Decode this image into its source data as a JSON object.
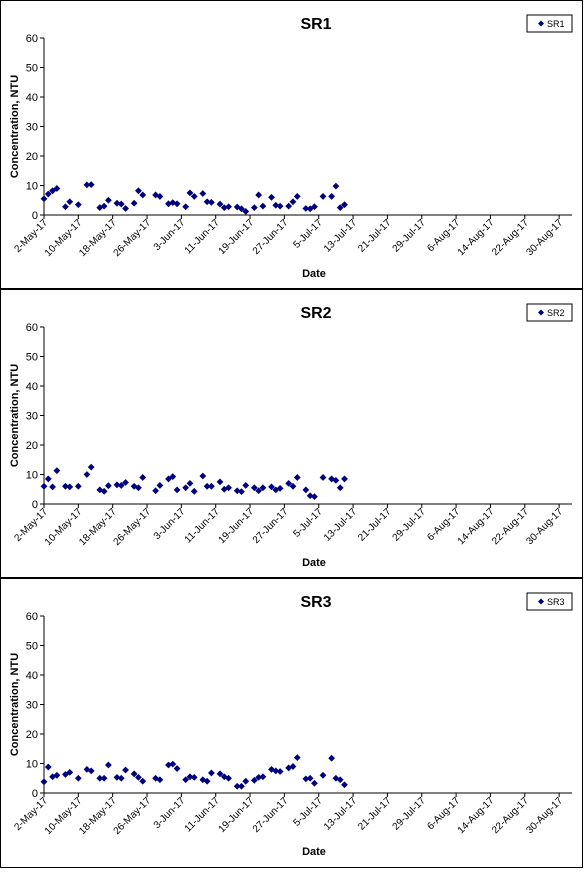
{
  "chart_data": [
    {
      "type": "scatter",
      "title": "SR1",
      "xlabel": "Date",
      "ylabel": "Concentration, NTU",
      "ylim": [
        0,
        60
      ],
      "yticks": [
        0,
        10,
        20,
        30,
        40,
        50,
        60
      ],
      "xlim": [
        "2017-05-02",
        "2017-09-02"
      ],
      "xticks": [
        {
          "date": "2017-05-02",
          "label": "2-May-17"
        },
        {
          "date": "2017-05-10",
          "label": "10-May-17"
        },
        {
          "date": "2017-05-18",
          "label": "18-May-17"
        },
        {
          "date": "2017-05-26",
          "label": "26-May-17"
        },
        {
          "date": "2017-06-03",
          "label": "3-Jun-17"
        },
        {
          "date": "2017-06-11",
          "label": "11-Jun-17"
        },
        {
          "date": "2017-06-19",
          "label": "19-Jun-17"
        },
        {
          "date": "2017-06-27",
          "label": "27-Jun-17"
        },
        {
          "date": "2017-07-05",
          "label": "5-Jul-17"
        },
        {
          "date": "2017-07-13",
          "label": "13-Jul-17"
        },
        {
          "date": "2017-07-21",
          "label": "21-Jul-17"
        },
        {
          "date": "2017-07-29",
          "label": "29-Jul-17"
        },
        {
          "date": "2017-08-06",
          "label": "6-Aug-17"
        },
        {
          "date": "2017-08-14",
          "label": "14-Aug-17"
        },
        {
          "date": "2017-08-22",
          "label": "22-Aug-17"
        },
        {
          "date": "2017-08-30",
          "label": "30-Aug-17"
        }
      ],
      "grid": false,
      "legend": {
        "position": "top-right",
        "entries": [
          "SR1"
        ]
      },
      "series": [
        {
          "name": "SR1",
          "color": "#00007f",
          "marker": "diamond",
          "points": [
            [
              "2017-05-02",
              5.5
            ],
            [
              "2017-05-03",
              7.1
            ],
            [
              "2017-05-04",
              8.2
            ],
            [
              "2017-05-05",
              9.0
            ],
            [
              "2017-05-07",
              2.8
            ],
            [
              "2017-05-08",
              4.5
            ],
            [
              "2017-05-10",
              3.5
            ],
            [
              "2017-05-12",
              10.2
            ],
            [
              "2017-05-13",
              10.3
            ],
            [
              "2017-05-15",
              2.5
            ],
            [
              "2017-05-16",
              3.0
            ],
            [
              "2017-05-17",
              5.0
            ],
            [
              "2017-05-19",
              4.0
            ],
            [
              "2017-05-20",
              3.7
            ],
            [
              "2017-05-21",
              2.2
            ],
            [
              "2017-05-23",
              4.0
            ],
            [
              "2017-05-24",
              8.2
            ],
            [
              "2017-05-25",
              6.8
            ],
            [
              "2017-05-28",
              6.8
            ],
            [
              "2017-05-29",
              6.3
            ],
            [
              "2017-05-31",
              3.8
            ],
            [
              "2017-06-01",
              4.2
            ],
            [
              "2017-06-02",
              3.8
            ],
            [
              "2017-06-04",
              2.8
            ],
            [
              "2017-06-05",
              7.5
            ],
            [
              "2017-06-06",
              6.3
            ],
            [
              "2017-06-08",
              7.3
            ],
            [
              "2017-06-09",
              4.5
            ],
            [
              "2017-06-10",
              4.3
            ],
            [
              "2017-06-12",
              3.7
            ],
            [
              "2017-06-13",
              2.5
            ],
            [
              "2017-06-14",
              2.8
            ],
            [
              "2017-06-16",
              2.7
            ],
            [
              "2017-06-17",
              2.1
            ],
            [
              "2017-06-18",
              1.2
            ],
            [
              "2017-06-20",
              2.5
            ],
            [
              "2017-06-21",
              6.8
            ],
            [
              "2017-06-22",
              3.0
            ],
            [
              "2017-06-24",
              6.0
            ],
            [
              "2017-06-25",
              3.3
            ],
            [
              "2017-06-26",
              3.0
            ],
            [
              "2017-06-28",
              3.0
            ],
            [
              "2017-06-29",
              4.5
            ],
            [
              "2017-06-30",
              6.3
            ],
            [
              "2017-07-02",
              2.2
            ],
            [
              "2017-07-03",
              2.1
            ],
            [
              "2017-07-04",
              2.8
            ],
            [
              "2017-07-06",
              6.3
            ],
            [
              "2017-07-08",
              6.3
            ],
            [
              "2017-07-09",
              9.8
            ],
            [
              "2017-07-10",
              2.5
            ],
            [
              "2017-07-11",
              3.5
            ]
          ]
        }
      ]
    },
    {
      "type": "scatter",
      "title": "SR2",
      "xlabel": "Date",
      "ylabel": "Concentration, NTU",
      "ylim": [
        0,
        60
      ],
      "yticks": [
        0,
        10,
        20,
        30,
        40,
        50,
        60
      ],
      "xlim": [
        "2017-05-02",
        "2017-09-02"
      ],
      "xticks": [
        {
          "date": "2017-05-02",
          "label": "2-May-17"
        },
        {
          "date": "2017-05-10",
          "label": "10-May-17"
        },
        {
          "date": "2017-05-18",
          "label": "18-May-17"
        },
        {
          "date": "2017-05-26",
          "label": "26-May-17"
        },
        {
          "date": "2017-06-03",
          "label": "3-Jun-17"
        },
        {
          "date": "2017-06-11",
          "label": "11-Jun-17"
        },
        {
          "date": "2017-06-19",
          "label": "19-Jun-17"
        },
        {
          "date": "2017-06-27",
          "label": "27-Jun-17"
        },
        {
          "date": "2017-07-05",
          "label": "5-Jul-17"
        },
        {
          "date": "2017-07-13",
          "label": "13-Jul-17"
        },
        {
          "date": "2017-07-21",
          "label": "21-Jul-17"
        },
        {
          "date": "2017-07-29",
          "label": "29-Jul-17"
        },
        {
          "date": "2017-08-06",
          "label": "6-Aug-17"
        },
        {
          "date": "2017-08-14",
          "label": "14-Aug-17"
        },
        {
          "date": "2017-08-22",
          "label": "22-Aug-17"
        },
        {
          "date": "2017-08-30",
          "label": "30-Aug-17"
        }
      ],
      "grid": false,
      "legend": {
        "position": "top-right",
        "entries": [
          "SR2"
        ]
      },
      "series": [
        {
          "name": "SR2",
          "color": "#00007f",
          "marker": "diamond",
          "points": [
            [
              "2017-05-02",
              6.0
            ],
            [
              "2017-05-03",
              8.5
            ],
            [
              "2017-05-04",
              5.8
            ],
            [
              "2017-05-05",
              11.3
            ],
            [
              "2017-05-07",
              6.0
            ],
            [
              "2017-05-08",
              5.8
            ],
            [
              "2017-05-10",
              6.0
            ],
            [
              "2017-05-12",
              10.0
            ],
            [
              "2017-05-13",
              12.5
            ],
            [
              "2017-05-15",
              4.8
            ],
            [
              "2017-05-16",
              4.3
            ],
            [
              "2017-05-17",
              6.2
            ],
            [
              "2017-05-19",
              6.5
            ],
            [
              "2017-05-20",
              6.3
            ],
            [
              "2017-05-21",
              7.3
            ],
            [
              "2017-05-23",
              6.0
            ],
            [
              "2017-05-24",
              5.5
            ],
            [
              "2017-05-25",
              9.0
            ],
            [
              "2017-05-28",
              4.5
            ],
            [
              "2017-05-29",
              6.3
            ],
            [
              "2017-05-31",
              8.5
            ],
            [
              "2017-06-01",
              9.3
            ],
            [
              "2017-06-02",
              4.8
            ],
            [
              "2017-06-04",
              5.5
            ],
            [
              "2017-06-05",
              7.0
            ],
            [
              "2017-06-06",
              4.3
            ],
            [
              "2017-06-08",
              9.5
            ],
            [
              "2017-06-09",
              6.0
            ],
            [
              "2017-06-10",
              6.0
            ],
            [
              "2017-06-12",
              7.5
            ],
            [
              "2017-06-13",
              5.0
            ],
            [
              "2017-06-14",
              5.5
            ],
            [
              "2017-06-16",
              4.5
            ],
            [
              "2017-06-17",
              4.2
            ],
            [
              "2017-06-18",
              6.3
            ],
            [
              "2017-06-20",
              5.5
            ],
            [
              "2017-06-21",
              4.5
            ],
            [
              "2017-06-22",
              5.5
            ],
            [
              "2017-06-24",
              5.8
            ],
            [
              "2017-06-25",
              4.8
            ],
            [
              "2017-06-26",
              5.3
            ],
            [
              "2017-06-28",
              7.0
            ],
            [
              "2017-06-29",
              6.0
            ],
            [
              "2017-06-30",
              9.0
            ],
            [
              "2017-07-02",
              4.8
            ],
            [
              "2017-07-03",
              2.8
            ],
            [
              "2017-07-04",
              2.5
            ],
            [
              "2017-07-06",
              9.0
            ],
            [
              "2017-07-08",
              8.5
            ],
            [
              "2017-07-09",
              8.0
            ],
            [
              "2017-07-10",
              5.5
            ],
            [
              "2017-07-11",
              8.5
            ]
          ]
        }
      ]
    },
    {
      "type": "scatter",
      "title": "SR3",
      "xlabel": "Date",
      "ylabel": "Concentration, NTU",
      "ylim": [
        0,
        60
      ],
      "yticks": [
        0,
        10,
        20,
        30,
        40,
        50,
        60
      ],
      "xlim": [
        "2017-05-02",
        "2017-09-02"
      ],
      "xticks": [
        {
          "date": "2017-05-02",
          "label": "2-May-17"
        },
        {
          "date": "2017-05-10",
          "label": "10-May-17"
        },
        {
          "date": "2017-05-18",
          "label": "18-May-17"
        },
        {
          "date": "2017-05-26",
          "label": "26-May-17"
        },
        {
          "date": "2017-06-03",
          "label": "3-Jun-17"
        },
        {
          "date": "2017-06-11",
          "label": "11-Jun-17"
        },
        {
          "date": "2017-06-19",
          "label": "19-Jun-17"
        },
        {
          "date": "2017-06-27",
          "label": "27-Jun-17"
        },
        {
          "date": "2017-07-05",
          "label": "5-Jul-17"
        },
        {
          "date": "2017-07-13",
          "label": "13-Jul-17"
        },
        {
          "date": "2017-07-21",
          "label": "21-Jul-17"
        },
        {
          "date": "2017-07-29",
          "label": "29-Jul-17"
        },
        {
          "date": "2017-08-06",
          "label": "6-Aug-17"
        },
        {
          "date": "2017-08-14",
          "label": "14-Aug-17"
        },
        {
          "date": "2017-08-22",
          "label": "22-Aug-17"
        },
        {
          "date": "2017-08-30",
          "label": "30-Aug-17"
        }
      ],
      "grid": false,
      "legend": {
        "position": "top-right",
        "entries": [
          "SR3"
        ]
      },
      "series": [
        {
          "name": "SR3",
          "color": "#00007f",
          "marker": "diamond",
          "points": [
            [
              "2017-05-02",
              3.8
            ],
            [
              "2017-05-03",
              8.8
            ],
            [
              "2017-05-04",
              5.5
            ],
            [
              "2017-05-05",
              6.0
            ],
            [
              "2017-05-07",
              6.3
            ],
            [
              "2017-05-08",
              7.0
            ],
            [
              "2017-05-10",
              5.0
            ],
            [
              "2017-05-12",
              8.0
            ],
            [
              "2017-05-13",
              7.5
            ],
            [
              "2017-05-15",
              5.0
            ],
            [
              "2017-05-16",
              5.0
            ],
            [
              "2017-05-17",
              9.5
            ],
            [
              "2017-05-19",
              5.3
            ],
            [
              "2017-05-20",
              5.0
            ],
            [
              "2017-05-21",
              7.8
            ],
            [
              "2017-05-23",
              6.5
            ],
            [
              "2017-05-24",
              5.3
            ],
            [
              "2017-05-25",
              4.0
            ],
            [
              "2017-05-28",
              5.0
            ],
            [
              "2017-05-29",
              4.5
            ],
            [
              "2017-05-31",
              9.5
            ],
            [
              "2017-06-01",
              9.8
            ],
            [
              "2017-06-02",
              8.3
            ],
            [
              "2017-06-04",
              4.5
            ],
            [
              "2017-06-05",
              5.5
            ],
            [
              "2017-06-06",
              5.3
            ],
            [
              "2017-06-08",
              4.5
            ],
            [
              "2017-06-09",
              4.0
            ],
            [
              "2017-06-10",
              6.8
            ],
            [
              "2017-06-12",
              6.5
            ],
            [
              "2017-06-13",
              5.5
            ],
            [
              "2017-06-14",
              5.0
            ],
            [
              "2017-06-16",
              2.3
            ],
            [
              "2017-06-17",
              2.3
            ],
            [
              "2017-06-18",
              4.0
            ],
            [
              "2017-06-20",
              4.3
            ],
            [
              "2017-06-21",
              5.3
            ],
            [
              "2017-06-22",
              5.5
            ],
            [
              "2017-06-24",
              8.0
            ],
            [
              "2017-06-25",
              7.5
            ],
            [
              "2017-06-26",
              7.3
            ],
            [
              "2017-06-28",
              8.5
            ],
            [
              "2017-06-29",
              9.0
            ],
            [
              "2017-06-30",
              12.0
            ],
            [
              "2017-07-02",
              4.8
            ],
            [
              "2017-07-03",
              5.0
            ],
            [
              "2017-07-04",
              3.3
            ],
            [
              "2017-07-06",
              6.0
            ],
            [
              "2017-07-08",
              11.8
            ],
            [
              "2017-07-09",
              5.0
            ],
            [
              "2017-07-10",
              4.5
            ],
            [
              "2017-07-11",
              2.8
            ]
          ]
        }
      ]
    }
  ]
}
